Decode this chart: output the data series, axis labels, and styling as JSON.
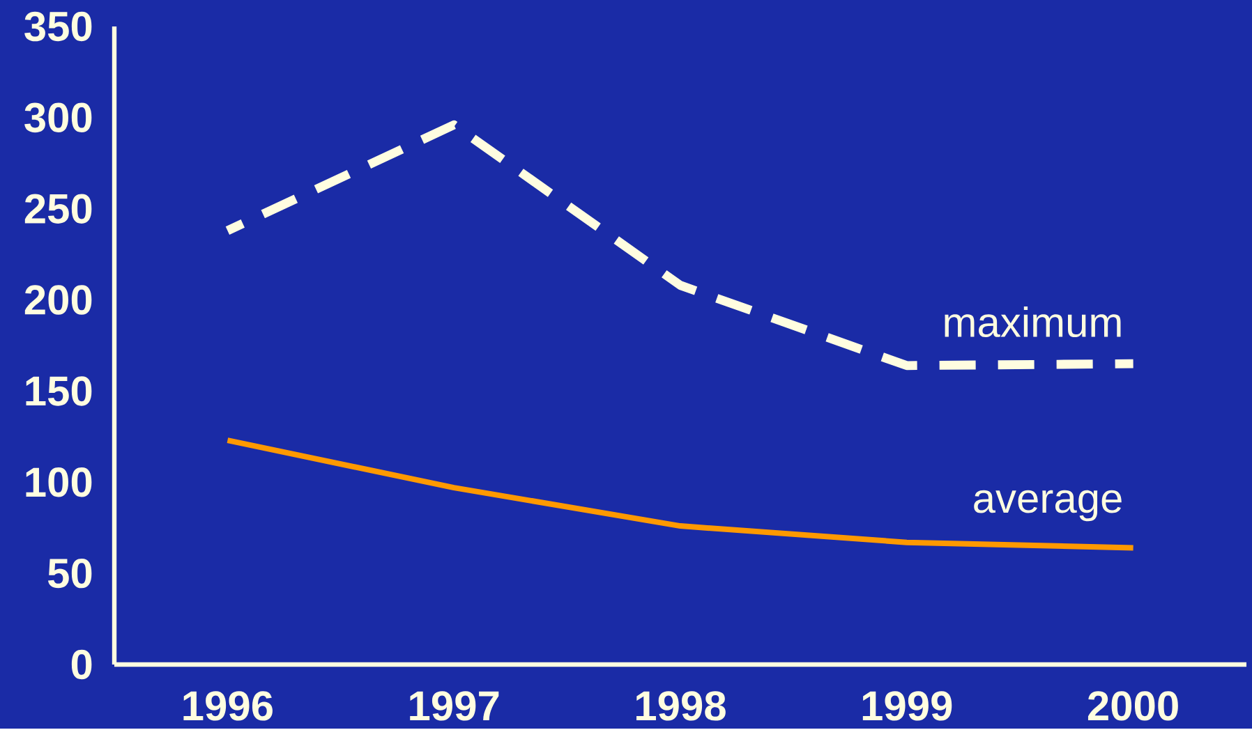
{
  "chart_data": {
    "type": "line",
    "categories": [
      "1996",
      "1997",
      "1998",
      "1999",
      "2000"
    ],
    "series": [
      {
        "name": "maximum",
        "color": "#fffde0",
        "line_style": "dashed",
        "values": [
          238,
          296,
          208,
          164,
          165
        ]
      },
      {
        "name": "average",
        "color": "#ff9900",
        "line_style": "solid",
        "values": [
          123,
          97,
          76,
          67,
          64
        ]
      }
    ],
    "ylim": [
      0,
      350
    ],
    "yticks": [
      0,
      50,
      100,
      150,
      200,
      250,
      300,
      350
    ]
  }
}
